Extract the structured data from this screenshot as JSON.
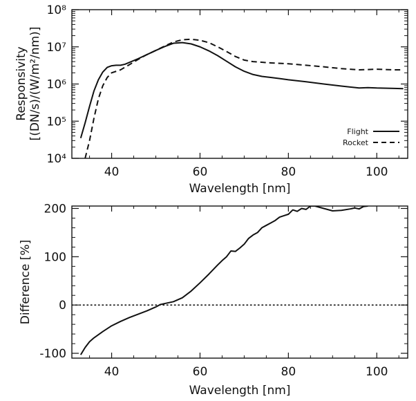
{
  "chart_data": [
    {
      "type": "line",
      "title": "",
      "xlabel": "Wavelength [nm]",
      "ylabel_line1": "Responsivity",
      "ylabel_line2": "[(DN/s)/(W/m²/nm)]",
      "y_scale": "log",
      "xlim": [
        31,
        107
      ],
      "ylim": [
        10000,
        100000000
      ],
      "x_ticks": [
        40,
        60,
        80,
        100
      ],
      "x_tick_labels": [
        "40",
        "60",
        "80",
        "100"
      ],
      "y_ticks": [
        10000,
        100000,
        1000000,
        10000000,
        100000000
      ],
      "y_tick_labels": [
        "10⁴",
        "10⁵",
        "10⁶",
        "10⁷",
        "10⁸"
      ],
      "legend_position": "lower-right",
      "series": [
        {
          "name": "Flight",
          "style": "solid",
          "x": [
            33,
            34,
            35,
            36,
            37,
            38,
            39,
            40,
            41,
            42,
            43,
            44,
            46,
            48,
            50,
            52,
            54,
            56,
            58,
            60,
            62,
            64,
            66,
            68,
            70,
            72,
            74,
            76,
            78,
            80,
            84,
            88,
            92,
            96,
            98,
            100,
            104,
            106
          ],
          "y": [
            35000,
            90000,
            250000,
            650000,
            1300000,
            2100000,
            2800000,
            3100000,
            3200000,
            3200000,
            3400000,
            3800000,
            4800000,
            6200000,
            8000000,
            10200000,
            12500000,
            13000000,
            12000000,
            10000000,
            7800000,
            5800000,
            4100000,
            2900000,
            2200000,
            1800000,
            1600000,
            1500000,
            1400000,
            1300000,
            1150000,
            1000000,
            880000,
            780000,
            800000,
            780000,
            760000,
            750000
          ]
        },
        {
          "name": "Rocket",
          "style": "dashed",
          "x": [
            34,
            35,
            36,
            37,
            38,
            39,
            40,
            42,
            44,
            46,
            48,
            50,
            52,
            54,
            56,
            58,
            60,
            62,
            64,
            66,
            68,
            70,
            72,
            76,
            80,
            84,
            88,
            92,
            96,
            100,
            104,
            106
          ],
          "y": [
            10000,
            30000,
            120000,
            400000,
            900000,
            1500000,
            2000000,
            2400000,
            3300000,
            4600000,
            6200000,
            8000000,
            10500000,
            13500000,
            15500000,
            16000000,
            15000000,
            13000000,
            10000000,
            7500000,
            5500000,
            4400000,
            4000000,
            3700000,
            3500000,
            3200000,
            2900000,
            2600000,
            2400000,
            2500000,
            2400000,
            2400000
          ]
        }
      ]
    },
    {
      "type": "line",
      "title": "",
      "xlabel": "Wavelength [nm]",
      "ylabel": "Difference [%]",
      "xlim": [
        31,
        107
      ],
      "ylim": [
        -110,
        205
      ],
      "x_ticks": [
        40,
        60,
        80,
        100
      ],
      "x_tick_labels": [
        "40",
        "60",
        "80",
        "100"
      ],
      "y_ticks": [
        -100,
        0,
        100,
        200
      ],
      "y_tick_labels": [
        "-100",
        "0",
        "100",
        "200"
      ],
      "reference_line": {
        "y": 0,
        "style": "dotted"
      },
      "series": [
        {
          "style": "solid",
          "x": [
            33,
            34,
            35,
            36,
            38,
            40,
            42,
            44,
            46,
            48,
            50,
            51,
            52,
            54,
            56,
            58,
            60,
            62,
            64,
            65,
            66,
            67,
            68,
            69,
            70,
            71,
            72,
            73,
            74,
            75,
            76,
            77,
            78,
            79,
            80,
            81,
            82,
            83,
            84,
            85,
            86,
            88,
            90,
            92,
            94,
            95,
            96,
            97,
            98
          ],
          "y": [
            -103,
            -88,
            -76,
            -68,
            -55,
            -43,
            -34,
            -26,
            -19,
            -12,
            -4,
            1,
            3,
            7,
            15,
            29,
            46,
            64,
            83,
            92,
            100,
            112,
            111,
            118,
            126,
            138,
            145,
            150,
            160,
            165,
            170,
            175,
            182,
            185,
            188,
            197,
            194,
            200,
            198,
            205,
            205,
            200,
            195,
            196,
            199,
            201,
            199,
            204,
            205
          ]
        }
      ]
    }
  ]
}
